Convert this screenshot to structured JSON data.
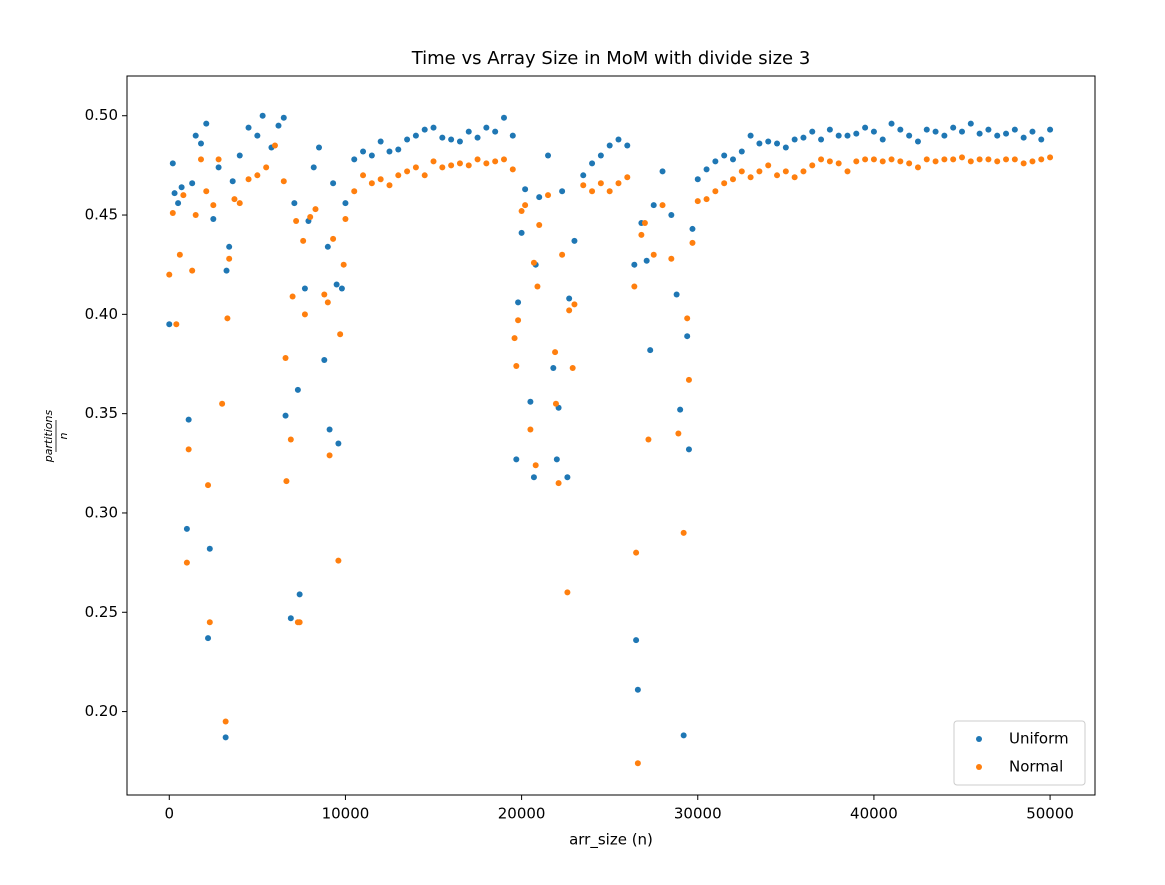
{
  "chart_data": {
    "type": "scatter",
    "title": "Time vs Array Size in MoM with divide size 3",
    "x_label": "arr_size (n)",
    "y_label": {
      "numerator": "partitions",
      "denominator": "n"
    },
    "xlim": [
      -2400,
      52550
    ],
    "ylim": [
      0.158,
      0.52
    ],
    "xticks": [
      0,
      10000,
      20000,
      30000,
      40000,
      50000
    ],
    "yticks": [
      {
        "value": 0.2,
        "label": "0.20"
      },
      0.25,
      {
        "value": 0.3,
        "label": "0.30"
      },
      0.35,
      {
        "value": 0.4,
        "label": "0.40"
      },
      0.45,
      {
        "value": 0.5,
        "label": "0.50"
      }
    ],
    "grid": false,
    "legend": "lower right",
    "series": [
      {
        "name": "Uniform",
        "color": "#1f77b4",
        "x": [
          0,
          200,
          300,
          500,
          700,
          1000,
          1100,
          1300,
          1500,
          1800,
          2100,
          2200,
          2300,
          2500,
          2800,
          3200,
          3250,
          3400,
          3600,
          4000,
          4500,
          5000,
          5300,
          5800,
          6200,
          6500,
          6600,
          6900,
          7100,
          7300,
          7400,
          7700,
          7900,
          8200,
          8500,
          8800,
          9000,
          9100,
          9300,
          9500,
          9600,
          9800,
          10000,
          10500,
          11000,
          11500,
          12000,
          12500,
          13000,
          13500,
          14000,
          14500,
          15000,
          15500,
          16000,
          16500,
          17000,
          17500,
          18000,
          18500,
          19000,
          19500,
          19700,
          19800,
          20000,
          20200,
          20500,
          20700,
          20800,
          21000,
          21500,
          21800,
          22000,
          22100,
          22300,
          22600,
          22700,
          23000,
          23500,
          24000,
          24500,
          25000,
          25500,
          26000,
          26400,
          26500,
          26600,
          26800,
          27100,
          27300,
          27500,
          28000,
          28500,
          28800,
          29000,
          29200,
          29400,
          29500,
          29700,
          30000,
          30500,
          31000,
          31500,
          32000,
          32500,
          33000,
          33500,
          34000,
          34500,
          35000,
          35500,
          36000,
          36500,
          37000,
          37500,
          38000,
          38500,
          39000,
          39500,
          40000,
          40500,
          41000,
          41500,
          42000,
          42500,
          43000,
          43500,
          44000,
          44500,
          45000,
          45500,
          46000,
          46500,
          47000,
          47500,
          48000,
          48500,
          49000,
          49500,
          50000
        ],
        "values": [
          0.395,
          0.476,
          0.461,
          0.456,
          0.464,
          0.292,
          0.347,
          0.466,
          0.49,
          0.486,
          0.496,
          0.237,
          0.282,
          0.448,
          0.474,
          0.187,
          0.422,
          0.434,
          0.467,
          0.48,
          0.494,
          0.49,
          0.5,
          0.484,
          0.495,
          0.499,
          0.349,
          0.247,
          0.456,
          0.362,
          0.259,
          0.413,
          0.447,
          0.474,
          0.484,
          0.377,
          0.434,
          0.342,
          0.466,
          0.415,
          0.335,
          0.413,
          0.456,
          0.478,
          0.482,
          0.48,
          0.487,
          0.482,
          0.483,
          0.488,
          0.49,
          0.493,
          0.494,
          0.489,
          0.488,
          0.487,
          0.492,
          0.489,
          0.494,
          0.492,
          0.499,
          0.49,
          0.327,
          0.406,
          0.441,
          0.463,
          0.356,
          0.318,
          0.425,
          0.459,
          0.48,
          0.373,
          0.327,
          0.353,
          0.462,
          0.318,
          0.408,
          0.437,
          0.47,
          0.476,
          0.48,
          0.485,
          0.488,
          0.485,
          0.425,
          0.236,
          0.211,
          0.446,
          0.427,
          0.382,
          0.455,
          0.472,
          0.45,
          0.41,
          0.352,
          0.188,
          0.389,
          0.332,
          0.443,
          0.468,
          0.473,
          0.477,
          0.48,
          0.478,
          0.482,
          0.49,
          0.486,
          0.487,
          0.486,
          0.484,
          0.488,
          0.489,
          0.492,
          0.488,
          0.493,
          0.49,
          0.49,
          0.491,
          0.494,
          0.492,
          0.488,
          0.496,
          0.493,
          0.49,
          0.487,
          0.493,
          0.492,
          0.49,
          0.494,
          0.492,
          0.496,
          0.491,
          0.493,
          0.49,
          0.491,
          0.493,
          0.489,
          0.492,
          0.488,
          0.493
        ]
      },
      {
        "name": "Normal",
        "color": "#ff7f0e",
        "x": [
          0,
          200,
          400,
          600,
          800,
          1000,
          1100,
          1300,
          1500,
          1800,
          2100,
          2200,
          2300,
          2500,
          2800,
          3000,
          3200,
          3300,
          3400,
          3700,
          4000,
          4500,
          5000,
          5500,
          6000,
          6500,
          6600,
          6650,
          6900,
          7000,
          7200,
          7300,
          7400,
          7600,
          7700,
          8000,
          8300,
          8800,
          9000,
          9100,
          9300,
          9600,
          9700,
          9900,
          10000,
          10500,
          11000,
          11500,
          12000,
          12500,
          13000,
          13500,
          14000,
          14500,
          15000,
          15500,
          16000,
          16500,
          17000,
          17500,
          18000,
          18500,
          19000,
          19500,
          19600,
          19700,
          19800,
          20000,
          20200,
          20500,
          20700,
          20800,
          20900,
          21000,
          21500,
          21900,
          21950,
          22100,
          22300,
          22600,
          22700,
          22900,
          23000,
          23500,
          24000,
          24500,
          25000,
          25500,
          26000,
          26400,
          26500,
          26600,
          26800,
          27000,
          27200,
          27500,
          28000,
          28500,
          28900,
          29200,
          29400,
          29500,
          29700,
          30000,
          30500,
          31000,
          31500,
          32000,
          32500,
          33000,
          33500,
          34000,
          34500,
          35000,
          35500,
          36000,
          36500,
          37000,
          37500,
          38000,
          38500,
          39000,
          39500,
          40000,
          40500,
          41000,
          41500,
          42000,
          42500,
          43000,
          43500,
          44000,
          44500,
          45000,
          45500,
          46000,
          46500,
          47000,
          47500,
          48000,
          48500,
          49000,
          49500,
          50000
        ],
        "values": [
          0.42,
          0.451,
          0.395,
          0.43,
          0.46,
          0.275,
          0.332,
          0.422,
          0.45,
          0.478,
          0.462,
          0.314,
          0.245,
          0.455,
          0.478,
          0.355,
          0.195,
          0.398,
          0.428,
          0.458,
          0.456,
          0.468,
          0.47,
          0.474,
          0.485,
          0.467,
          0.378,
          0.316,
          0.337,
          0.409,
          0.447,
          0.245,
          0.245,
          0.437,
          0.4,
          0.449,
          0.453,
          0.41,
          0.406,
          0.329,
          0.438,
          0.276,
          0.39,
          0.425,
          0.448,
          0.462,
          0.47,
          0.466,
          0.468,
          0.465,
          0.47,
          0.472,
          0.474,
          0.47,
          0.477,
          0.474,
          0.475,
          0.476,
          0.475,
          0.478,
          0.476,
          0.477,
          0.478,
          0.473,
          0.388,
          0.374,
          0.397,
          0.452,
          0.455,
          0.342,
          0.426,
          0.324,
          0.414,
          0.445,
          0.46,
          0.381,
          0.355,
          0.315,
          0.43,
          0.26,
          0.402,
          0.373,
          0.405,
          0.465,
          0.462,
          0.466,
          0.462,
          0.466,
          0.469,
          0.414,
          0.28,
          0.174,
          0.44,
          0.446,
          0.337,
          0.43,
          0.455,
          0.428,
          0.34,
          0.29,
          0.398,
          0.367,
          0.436,
          0.457,
          0.458,
          0.462,
          0.466,
          0.468,
          0.472,
          0.469,
          0.472,
          0.475,
          0.47,
          0.472,
          0.469,
          0.472,
          0.475,
          0.478,
          0.477,
          0.476,
          0.472,
          0.477,
          0.478,
          0.478,
          0.477,
          0.478,
          0.477,
          0.476,
          0.474,
          0.478,
          0.477,
          0.478,
          0.478,
          0.479,
          0.477,
          0.478,
          0.478,
          0.477,
          0.478,
          0.478,
          0.476,
          0.477,
          0.478,
          0.479
        ]
      }
    ]
  }
}
